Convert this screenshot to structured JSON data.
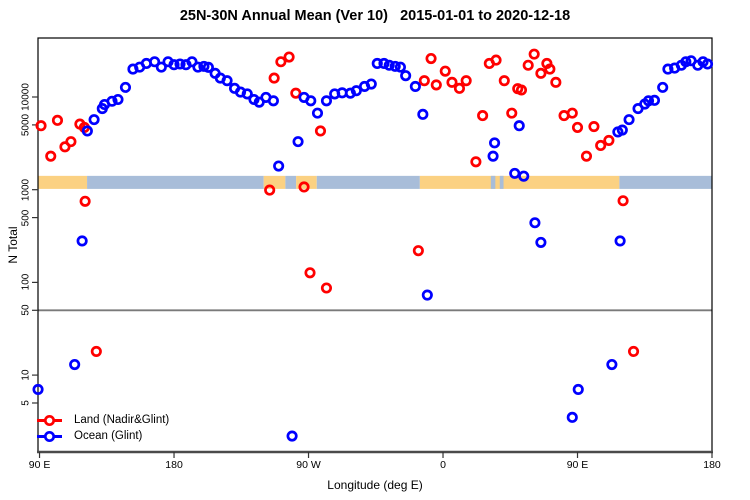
{
  "title": "25N-30N Annual Mean (Ver 10)   2015-01-01 to 2020-12-18",
  "chart_data": {
    "type": "scatter",
    "title": "25N-30N Annual Mean (Ver 10)   2015-01-01 to 2020-12-18",
    "xlabel": "Longitude (deg E)",
    "ylabel": "N Total",
    "x_axis": {
      "range": [
        -271.03,
        180
      ],
      "ticks": [
        -270,
        -180,
        -90,
        0,
        90,
        180
      ],
      "tick_labels": [
        "90 E",
        "180",
        "90 W",
        "0",
        "90 E",
        "180"
      ]
    },
    "y_axis": {
      "scale": "log",
      "range": [
        1.48,
        43300
      ],
      "ticks": [
        5,
        10,
        50,
        100,
        500,
        1000,
        5000,
        10000
      ],
      "tick_labels": [
        "5",
        "10",
        "50",
        "100",
        "500",
        "1000",
        "5000",
        "10000"
      ]
    },
    "grid": false,
    "reference_line_y": 50,
    "reference_line_color": "#7a7a7a",
    "surface_band": {
      "description": "land/ocean strip map for 25N-30N",
      "value_range": [
        1020,
        1410
      ],
      "land_color": "#fbd182",
      "ocean_color": "#a8bdd9",
      "segments": [
        {
          "type": "land",
          "lon": [
            -271.0,
            -238.2
          ]
        },
        {
          "type": "ocean",
          "lon": [
            -238.2,
            -120.0
          ]
        },
        {
          "type": "land",
          "lon": [
            -120.0,
            -105.5
          ]
        },
        {
          "type": "ocean",
          "lon": [
            -105.5,
            -98.3
          ]
        },
        {
          "type": "land",
          "lon": [
            -98.3,
            -84.5
          ]
        },
        {
          "type": "ocean",
          "lon": [
            -84.5,
            -15.5
          ]
        },
        {
          "type": "land",
          "lon": [
            -15.5,
            118.0
          ]
        },
        {
          "type": "ocean",
          "lon": [
            118.0,
            180.0
          ]
        },
        {
          "type": "ocean",
          "lon": [
            32.0,
            35.0
          ]
        },
        {
          "type": "ocean",
          "lon": [
            38.0,
            40.5
          ]
        }
      ]
    },
    "legend": {
      "position": "bottom-left",
      "entries": [
        "Land (Nadir&Glint)",
        "Ocean (Glint)"
      ]
    },
    "series": [
      {
        "name": "Land (Nadir&Glint)",
        "color": "#ff0000",
        "points": [
          [
            -269,
            4900
          ],
          [
            -262.5,
            2300
          ],
          [
            -258,
            5600
          ],
          [
            -253,
            2900
          ],
          [
            -249,
            3300
          ],
          [
            -243,
            5100
          ],
          [
            -240,
            4700
          ],
          [
            -239.5,
            750
          ],
          [
            -232,
            18
          ],
          [
            -116,
            990
          ],
          [
            -113,
            16000
          ],
          [
            -108.5,
            24000
          ],
          [
            -103,
            27000
          ],
          [
            -98.5,
            11000
          ],
          [
            -93,
            1070
          ],
          [
            -89,
            127
          ],
          [
            -82,
            4300
          ],
          [
            -78,
            87
          ],
          [
            -16.5,
            220
          ],
          [
            -12.5,
            15000
          ],
          [
            -8,
            26000
          ],
          [
            -4.5,
            13500
          ],
          [
            1.5,
            19000
          ],
          [
            6,
            14400
          ],
          [
            11,
            12400
          ],
          [
            15.5,
            15000
          ],
          [
            22,
            2000
          ],
          [
            26.5,
            6300
          ],
          [
            31,
            23000
          ],
          [
            35.5,
            25000
          ],
          [
            41,
            15000
          ],
          [
            46,
            6700
          ],
          [
            50,
            12300
          ],
          [
            52.5,
            11900
          ],
          [
            57,
            22000
          ],
          [
            61,
            29000
          ],
          [
            65.5,
            18000
          ],
          [
            69.5,
            23000
          ],
          [
            71.5,
            20000
          ],
          [
            75.5,
            14400
          ],
          [
            81,
            6300
          ],
          [
            86.5,
            6700
          ],
          [
            90,
            4700
          ],
          [
            96,
            2300
          ],
          [
            101,
            4800
          ],
          [
            105.5,
            3000
          ],
          [
            111,
            3400
          ],
          [
            120.5,
            760
          ],
          [
            127.5,
            18
          ]
        ]
      },
      {
        "name": "Ocean (Glint)",
        "color": "#0000ff",
        "points": [
          [
            -271,
            7
          ],
          [
            -246.5,
            13
          ],
          [
            -241.5,
            280
          ],
          [
            -238,
            4300
          ],
          [
            -233.5,
            5700
          ],
          [
            -228,
            7500
          ],
          [
            -226.5,
            8300
          ],
          [
            -221.5,
            9000
          ],
          [
            -217.5,
            9400
          ],
          [
            -212.5,
            12700
          ],
          [
            -207.5,
            20000
          ],
          [
            -203,
            21000
          ],
          [
            -198.5,
            23000
          ],
          [
            -193,
            24000
          ],
          [
            -188.5,
            21000
          ],
          [
            -184,
            24000
          ],
          [
            -180,
            22300
          ],
          [
            -176,
            22700
          ],
          [
            -172,
            22300
          ],
          [
            -168,
            24000
          ],
          [
            -164,
            21000
          ],
          [
            -160,
            21400
          ],
          [
            -157,
            20900
          ],
          [
            -152.5,
            18000
          ],
          [
            -149,
            16000
          ],
          [
            -144.5,
            15000
          ],
          [
            -139.5,
            12400
          ],
          [
            -135.5,
            11300
          ],
          [
            -131,
            10800
          ],
          [
            -126.5,
            9400
          ],
          [
            -123,
            8800
          ],
          [
            -118.5,
            9900
          ],
          [
            -113.5,
            9100
          ],
          [
            -110,
            1800
          ],
          [
            -101,
            2.2
          ],
          [
            -97,
            3300
          ],
          [
            -93,
            9900
          ],
          [
            -88.5,
            9100
          ],
          [
            -84,
            6700
          ],
          [
            -78,
            9100
          ],
          [
            -72.5,
            10800
          ],
          [
            -67.5,
            11100
          ],
          [
            -62,
            11000
          ],
          [
            -58,
            11700
          ],
          [
            -52.5,
            13000
          ],
          [
            -48,
            13800
          ],
          [
            -44,
            23000
          ],
          [
            -39.5,
            23000
          ],
          [
            -36,
            22000
          ],
          [
            -32,
            21400
          ],
          [
            -28.5,
            21000
          ],
          [
            -25,
            17000
          ],
          [
            -18.5,
            13000
          ],
          [
            -13.5,
            6500
          ],
          [
            -10.5,
            73
          ],
          [
            33.5,
            2300
          ],
          [
            34.5,
            3200
          ],
          [
            48,
            1500
          ],
          [
            51,
            4900
          ],
          [
            54,
            1400
          ],
          [
            61.5,
            440
          ],
          [
            65.5,
            270
          ],
          [
            86.5,
            3.5
          ],
          [
            90.5,
            7
          ],
          [
            113,
            13
          ],
          [
            117,
            4200
          ],
          [
            120,
            4400
          ],
          [
            118.5,
            280
          ],
          [
            124.5,
            5700
          ],
          [
            130.5,
            7500
          ],
          [
            135,
            8400
          ],
          [
            137.5,
            9100
          ],
          [
            141.5,
            9200
          ],
          [
            147,
            12700
          ],
          [
            150.5,
            20000
          ],
          [
            155,
            20500
          ],
          [
            159.5,
            22000
          ],
          [
            162.5,
            24000
          ],
          [
            166,
            24600
          ],
          [
            170.5,
            22000
          ],
          [
            174,
            24000
          ],
          [
            177,
            22700
          ]
        ]
      }
    ]
  }
}
